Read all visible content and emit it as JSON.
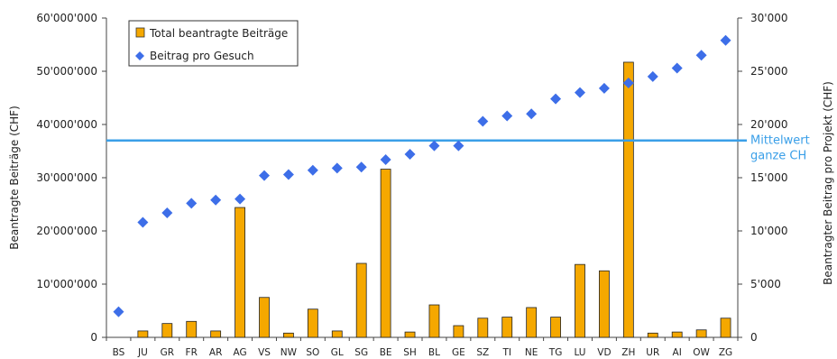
{
  "chart_data": {
    "type": "bar+scatter",
    "categories": [
      "BS",
      "JU",
      "GR",
      "FR",
      "AR",
      "AG",
      "VS",
      "NW",
      "SO",
      "GL",
      "SG",
      "BE",
      "SH",
      "BL",
      "GE",
      "SZ",
      "TI",
      "NE",
      "TG",
      "LU",
      "VD",
      "ZH",
      "UR",
      "AI",
      "OW",
      "ZG"
    ],
    "series": [
      {
        "name": "Total beantragte Beiträge",
        "axis": "left",
        "type": "bar",
        "color": "#f5a800",
        "values": [
          0,
          1200000,
          2600000,
          3000000,
          1200000,
          24400000,
          7500000,
          800000,
          5300000,
          1200000,
          13900000,
          31600000,
          1000000,
          6100000,
          2200000,
          3600000,
          3800000,
          5600000,
          3800000,
          13700000,
          12500000,
          51700000,
          800000,
          1000000,
          1400000,
          3600000
        ]
      },
      {
        "name": "Beitrag pro Gesuch",
        "axis": "right",
        "type": "scatter",
        "color": "#3d6ee8",
        "values": [
          2400,
          10800,
          11700,
          12600,
          12900,
          13000,
          15200,
          15300,
          15700,
          15900,
          16000,
          16700,
          17200,
          18000,
          18000,
          20300,
          20800,
          21000,
          22400,
          23000,
          23400,
          23900,
          24500,
          25300,
          26500,
          27900
        ]
      }
    ],
    "y_left": {
      "label": "Beantragte Beiträge (CHF)",
      "range": [
        0,
        60000000
      ],
      "ticks": [
        0,
        10000000,
        20000000,
        30000000,
        40000000,
        50000000,
        60000000
      ],
      "tick_labels": [
        "0",
        "10'000'000",
        "20'000'000",
        "30'000'000",
        "40'000'000",
        "50'000'000",
        "60'000'000"
      ]
    },
    "y_right": {
      "label": "Beantragter Beitrag pro Projekt (CHF)",
      "range": [
        0,
        30000
      ],
      "ticks": [
        0,
        5000,
        10000,
        15000,
        20000,
        25000,
        30000
      ],
      "tick_labels": [
        "0",
        "5'000",
        "10'000",
        "15'000",
        "20'000",
        "25'000",
        "30'000"
      ]
    },
    "mean_line": {
      "axis": "right",
      "value": 18500,
      "label_line1": "Mittelwert",
      "label_line2": "ganze CH",
      "color": "#3a9fe8"
    },
    "legend": {
      "placement": "top-left",
      "items": [
        "Total beantragte Beiträge",
        "Beitrag pro Gesuch"
      ]
    },
    "grid": false
  }
}
